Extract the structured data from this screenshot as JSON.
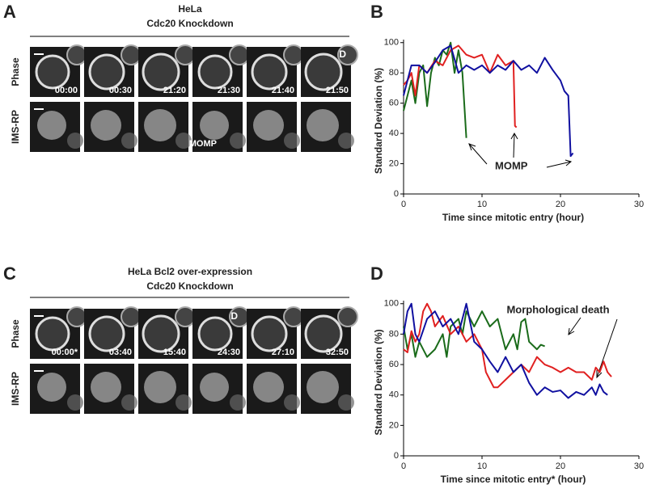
{
  "panel_letters": [
    "A",
    "B",
    "C",
    "D"
  ],
  "panel_a": {
    "title_lines": [
      "HeLa",
      "Cdc20 Knockdown"
    ],
    "row_labels": [
      "Phase",
      "IMS-RP"
    ],
    "timestamps": [
      "00:00",
      "00:30",
      "21:20",
      "21:30",
      "21:40",
      "21:50"
    ],
    "phase_marker": "D",
    "ims_marker": "MOMP"
  },
  "panel_c": {
    "title_lines": [
      "HeLa Bcl2 over-expression",
      "Cdc20 Knockdown"
    ],
    "row_labels": [
      "Phase",
      "IMS-RP"
    ],
    "timestamps": [
      "00:00*",
      "03:40",
      "15:40",
      "24:30",
      "27:10",
      "32:50"
    ],
    "phase_marker": "D"
  },
  "chart_data": [
    {
      "type": "line",
      "xlabel": "Time since mitotic entry (hour)",
      "ylabel": "Standard Deviation (%)",
      "annotation": "MOMP",
      "xlim": [
        0,
        30
      ],
      "xticks": [
        0,
        10,
        20,
        30
      ],
      "ylim": [
        0,
        102
      ],
      "yticks": [
        0,
        20,
        40,
        60,
        80,
        100
      ],
      "series": [
        {
          "color": "#1a6b1a",
          "x": [
            0,
            0.5,
            1,
            1.5,
            2,
            2.5,
            3,
            3.5,
            4,
            4.5,
            5,
            5.5,
            6,
            6.5,
            7,
            7.5,
            8
          ],
          "values": [
            55,
            65,
            75,
            60,
            80,
            85,
            58,
            80,
            90,
            85,
            95,
            92,
            100,
            80,
            95,
            80,
            37
          ]
        },
        {
          "color": "#e02020",
          "x": [
            0,
            0.5,
            1,
            1.5,
            2,
            3,
            4,
            5,
            6,
            7,
            8,
            9,
            10,
            11,
            12,
            13,
            14,
            14.2,
            14.4
          ],
          "values": [
            72,
            75,
            80,
            65,
            85,
            80,
            88,
            85,
            95,
            98,
            92,
            90,
            92,
            80,
            92,
            85,
            88,
            45,
            44
          ]
        },
        {
          "color": "#1010a0",
          "x": [
            0,
            1,
            2,
            3,
            4,
            5,
            6,
            7,
            8,
            9,
            10,
            11,
            12,
            13,
            14,
            15,
            16,
            17,
            18,
            19,
            20,
            20.5,
            21,
            21.3,
            21.6
          ],
          "values": [
            65,
            85,
            85,
            80,
            87,
            95,
            98,
            80,
            85,
            82,
            85,
            80,
            85,
            82,
            88,
            82,
            85,
            80,
            90,
            82,
            75,
            68,
            65,
            25,
            27
          ]
        }
      ]
    },
    {
      "type": "line",
      "xlabel": "Time since mitotic entry* (hour)",
      "ylabel": "Standard Deviation (%)",
      "annotation": "Morphological death",
      "xlim": [
        0,
        30
      ],
      "xticks": [
        0,
        10,
        20,
        30
      ],
      "ylim": [
        0,
        102
      ],
      "yticks": [
        0,
        20,
        40,
        60,
        80,
        100
      ],
      "series": [
        {
          "color": "#1a6b1a",
          "x": [
            0,
            0.5,
            1,
            1.5,
            2,
            3,
            4,
            5,
            5.5,
            6,
            7,
            7.5,
            8,
            9,
            10,
            11,
            12,
            13,
            14,
            14.5,
            15,
            15.5,
            16,
            17,
            17.5,
            18
          ],
          "values": [
            85,
            70,
            80,
            65,
            75,
            65,
            70,
            80,
            65,
            85,
            90,
            80,
            95,
            85,
            95,
            85,
            90,
            70,
            80,
            70,
            88,
            90,
            75,
            70,
            73,
            72
          ]
        },
        {
          "color": "#e02020",
          "x": [
            0,
            0.5,
            1,
            1.5,
            2,
            2.5,
            3,
            3.5,
            4,
            5,
            6,
            7,
            8,
            9,
            10,
            10.5,
            11,
            11.5,
            12,
            13,
            14,
            15,
            16,
            17,
            18,
            19,
            20,
            21,
            22,
            23,
            24,
            24.5,
            25,
            25.5,
            26,
            26.5
          ],
          "values": [
            70,
            68,
            82,
            75,
            80,
            95,
            100,
            95,
            85,
            92,
            80,
            85,
            75,
            80,
            70,
            55,
            50,
            45,
            45,
            50,
            55,
            60,
            55,
            65,
            60,
            58,
            55,
            58,
            55,
            55,
            50,
            58,
            55,
            62,
            55,
            52
          ]
        },
        {
          "color": "#1010a0",
          "x": [
            0,
            0.5,
            1,
            1.5,
            2,
            3,
            4,
            5,
            6,
            7,
            8,
            9,
            10,
            11,
            12,
            13,
            14,
            15,
            16,
            17,
            18,
            19,
            20,
            21,
            22,
            23,
            24,
            24.5,
            25,
            25.5,
            26
          ],
          "values": [
            80,
            95,
            100,
            80,
            75,
            90,
            95,
            85,
            90,
            80,
            100,
            75,
            70,
            62,
            55,
            65,
            55,
            60,
            48,
            40,
            45,
            42,
            43,
            38,
            42,
            40,
            45,
            40,
            47,
            42,
            40
          ]
        }
      ]
    }
  ]
}
